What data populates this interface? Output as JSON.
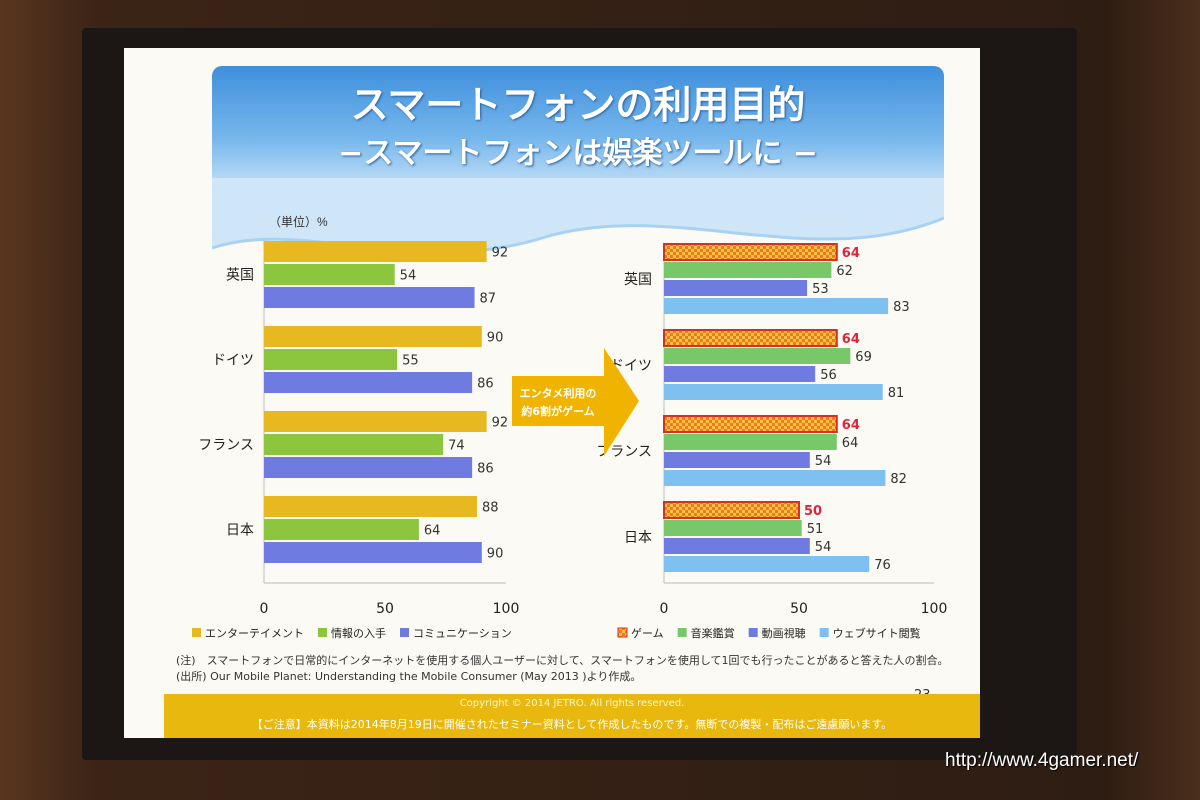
{
  "title": "スマートフォンの利用目的",
  "subtitle": "−スマートフォンは娯楽ツールに −",
  "unit_label": "（単位）%",
  "arrow_text_line1": "エンタメ利用の",
  "arrow_text_line2": "約6割がゲーム",
  "note1": "(注)　スマートフォンで日常的にインターネットを使用する個人ユーザーに対して、スマートフォンを使用して1回でも行ったことがあると答えた人の割合。",
  "note2": "(出所) Our Mobile Planet: Understanding the Mobile Consumer (May 2013 )より作成。",
  "copyright": "Copyright © 2014  JETRO. All rights reserved.",
  "caution": "【ご注意】本資料は2014年8月19日に開催されたセミナー資料として作成したものです。無断での複製・配布はご遠慮願います。",
  "page_number": "23",
  "watermark": "http://www.4gamer.net/",
  "chart_data": [
    {
      "type": "bar",
      "orientation": "horizontal",
      "categories": [
        "英国",
        "ドイツ",
        "フランス",
        "日本"
      ],
      "xlim": [
        0,
        100
      ],
      "x_ticks": [
        "0",
        "50",
        "100"
      ],
      "legend_position": "bottom",
      "series": [
        {
          "name": "エンターテイメント",
          "color": "#e8b820",
          "values": [
            92,
            90,
            92,
            88
          ]
        },
        {
          "name": "情報の入手",
          "color": "#8cc63f",
          "values": [
            54,
            55,
            74,
            64
          ]
        },
        {
          "name": "コミュニケーション",
          "color": "#6f7be0",
          "values": [
            87,
            86,
            86,
            90
          ]
        }
      ]
    },
    {
      "type": "bar",
      "orientation": "horizontal",
      "categories": [
        "英国",
        "ドイツ",
        "フランス",
        "日本"
      ],
      "xlim": [
        0,
        100
      ],
      "x_ticks": [
        "0",
        "50",
        "100"
      ],
      "legend_position": "bottom",
      "series": [
        {
          "name": "ゲーム",
          "color": "#f07a1a",
          "highlight": true,
          "values": [
            64,
            64,
            64,
            50
          ]
        },
        {
          "name": "音楽鑑賞",
          "color": "#78c86a",
          "values": [
            62,
            69,
            64,
            51
          ]
        },
        {
          "name": "動画視聴",
          "color": "#6f7be0",
          "values": [
            53,
            56,
            54,
            54
          ]
        },
        {
          "name": "ウェブサイト閲覧",
          "color": "#7ec0f0",
          "values": [
            83,
            81,
            82,
            76
          ]
        }
      ]
    }
  ]
}
